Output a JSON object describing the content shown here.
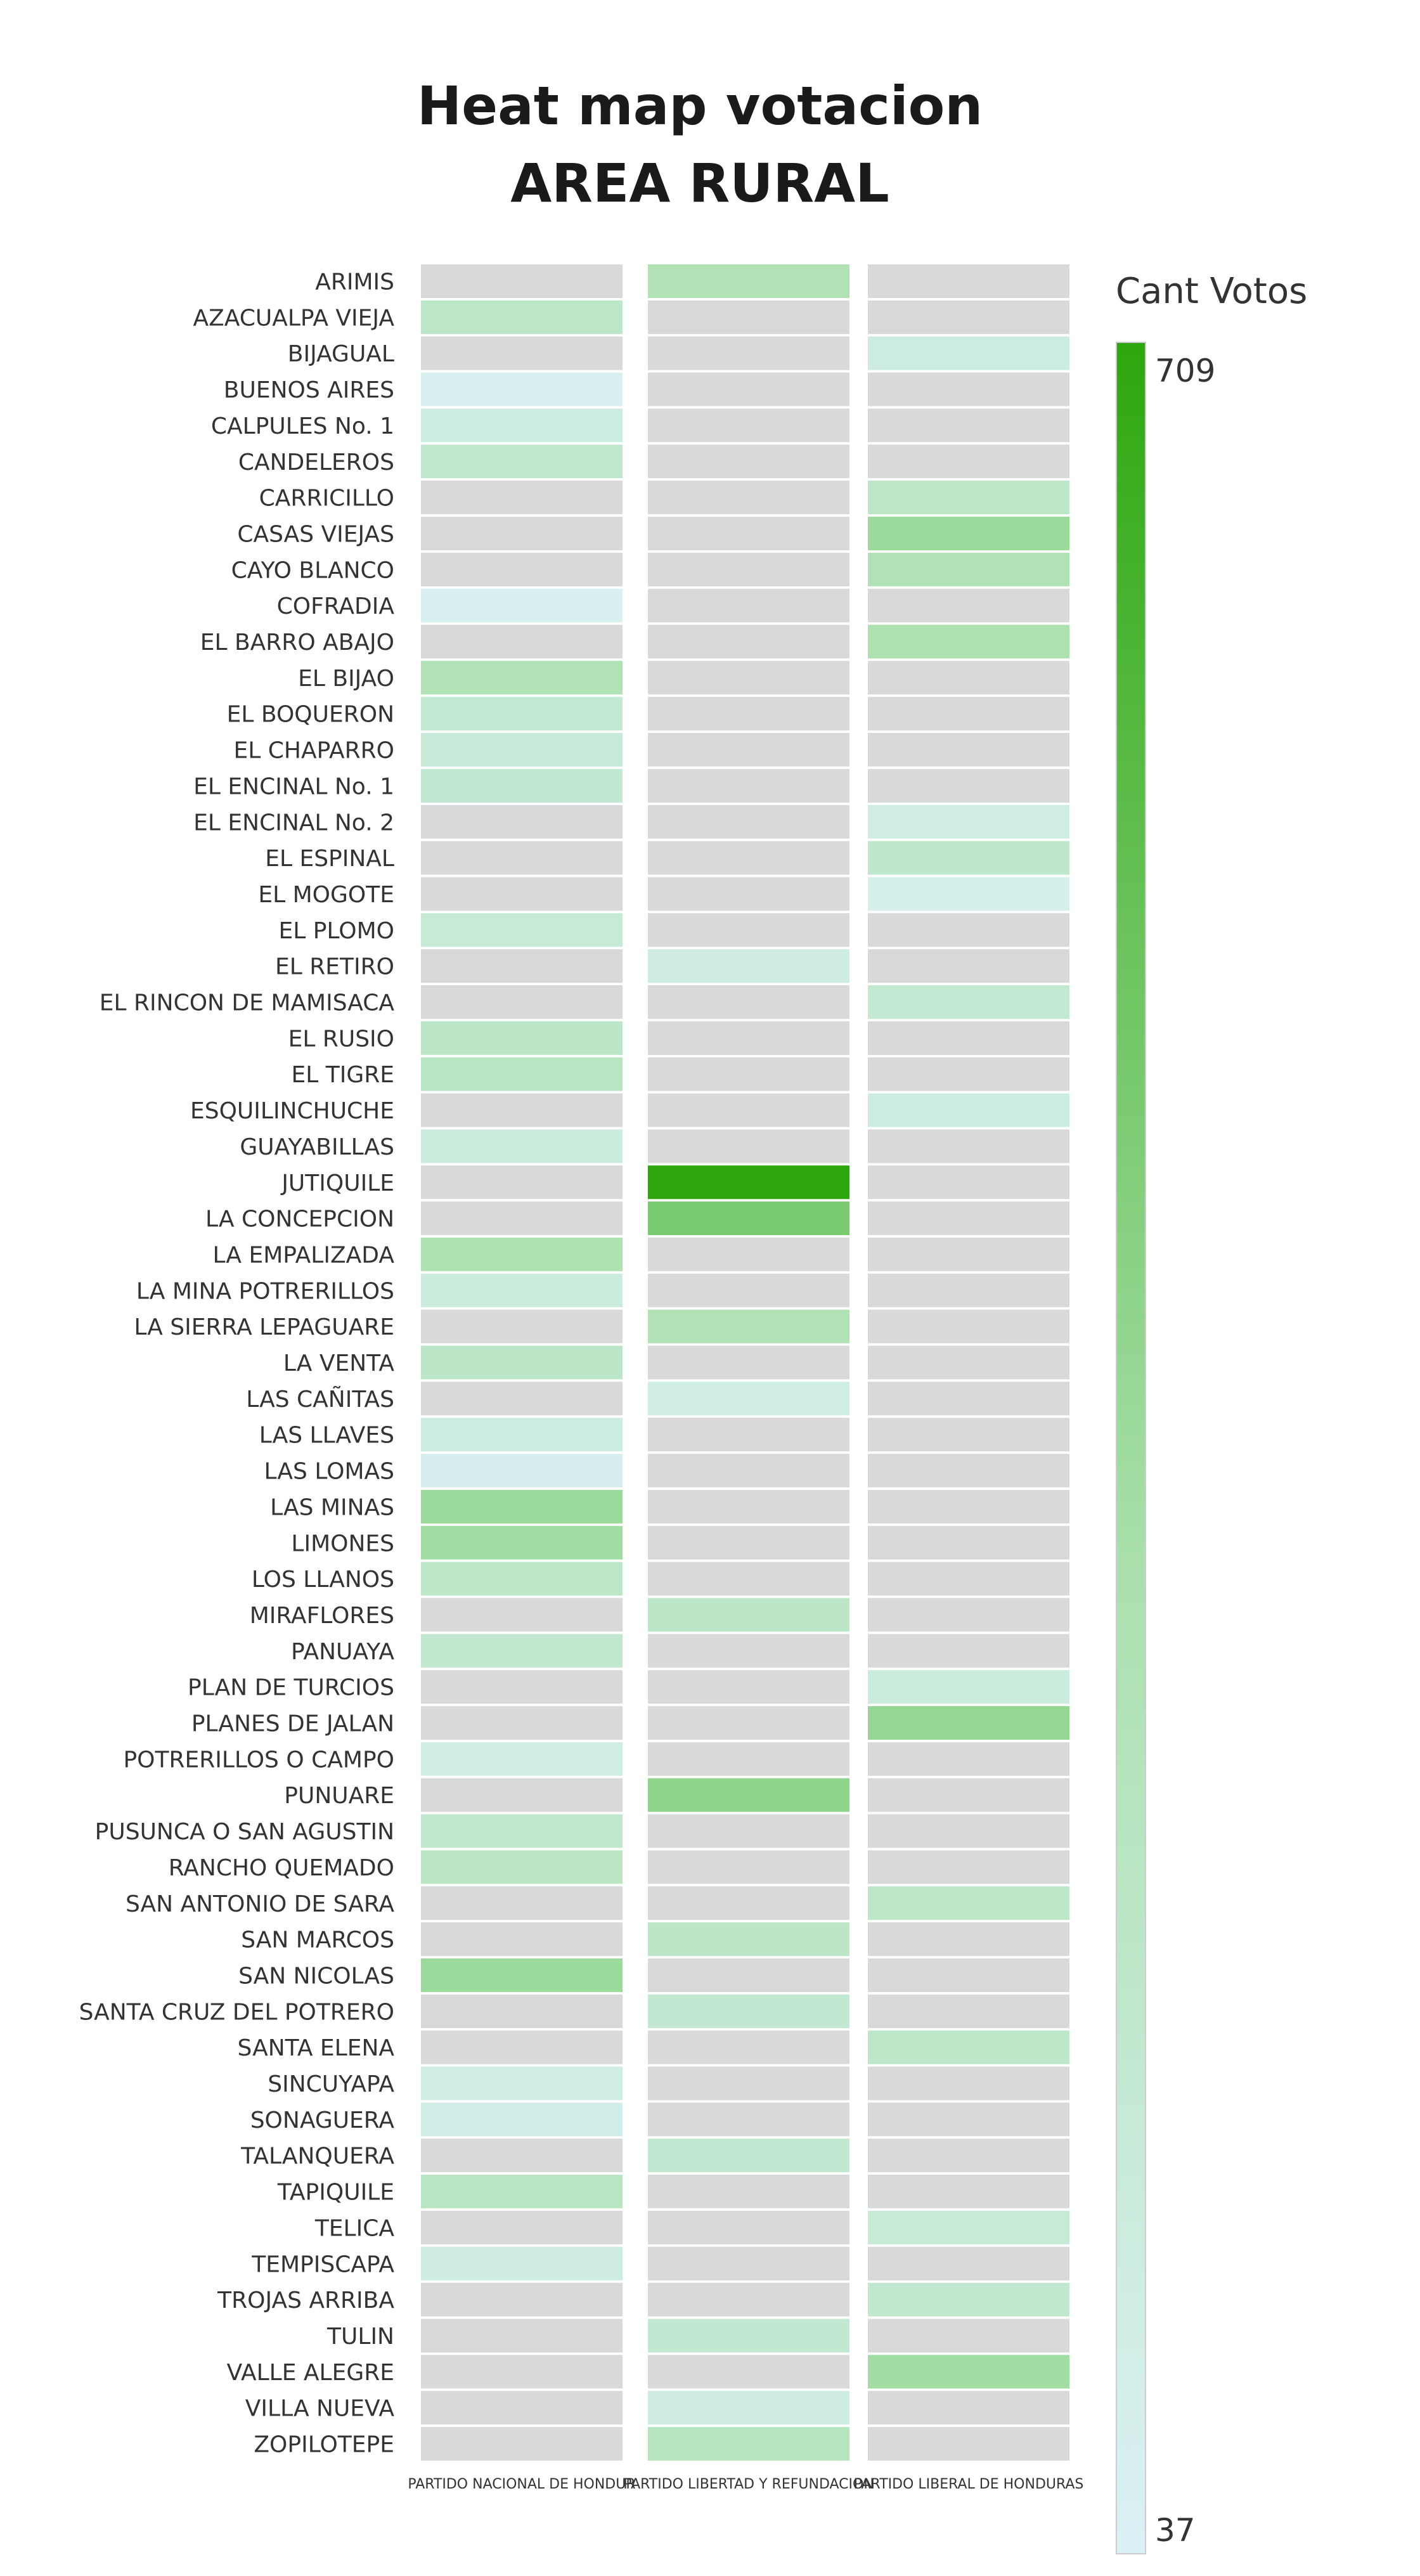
{
  "chart_data": {
    "type": "heatmap",
    "title": "Heat map votacion",
    "subtitle": "AREA RURAL",
    "columns": [
      "PARTIDO NACIONAL DE HONDUR",
      "PARTIDO LIBERTAD Y REFUNDACION",
      "PARTIDO LIBERAL DE HONDURAS"
    ],
    "rows": [
      "ARIMIS",
      "AZACUALPA VIEJA",
      "BIJAGUAL",
      "BUENOS AIRES",
      "CALPULES No. 1",
      "CANDELEROS",
      "CARRICILLO",
      "CASAS VIEJAS",
      "CAYO BLANCO",
      "COFRADIA",
      "EL BARRO ABAJO",
      "EL BIJAO",
      "EL BOQUERON",
      "EL CHAPARRO",
      "EL ENCINAL No. 1",
      "EL ENCINAL No. 2",
      "EL ESPINAL",
      "EL MOGOTE",
      "EL PLOMO",
      "EL RETIRO",
      "EL RINCON DE MAMISACA",
      "EL RUSIO",
      "EL TIGRE",
      "ESQUILINCHUCHE",
      "GUAYABILLAS",
      "JUTIQUILE",
      "LA CONCEPCION",
      "LA EMPALIZADA",
      "LA MINA POTRERILLOS",
      "LA SIERRA LEPAGUARE",
      "LA VENTA",
      "LAS CAÑITAS",
      "LAS LLAVES",
      "LAS LOMAS",
      "LAS MINAS",
      "LIMONES",
      "LOS LLANOS",
      "MIRAFLORES",
      "PANUAYA",
      "PLAN DE TURCIOS",
      "PLANES DE JALAN",
      "POTRERILLOS O CAMPO",
      "PUNUARE",
      "PUSUNCA O SAN AGUSTIN",
      "RANCHO QUEMADO",
      "SAN ANTONIO DE SARA",
      "SAN MARCOS",
      "SAN NICOLAS",
      "SANTA CRUZ DEL POTRERO",
      "SANTA ELENA",
      "SINCUYAPA",
      "SONAGUERA",
      "TALANQUERA",
      "TAPIQUILE",
      "TELICA",
      "TEMPISCAPA",
      "TROJAS ARRIBA",
      "TULIN",
      "VALLE ALEGRE",
      "VILLA NUEVA",
      "ZOPILOTEPE"
    ],
    "values": [
      [
        null,
        300,
        null
      ],
      [
        220,
        null,
        null
      ],
      [
        null,
        null,
        130
      ],
      [
        60,
        null,
        null
      ],
      [
        130,
        null,
        null
      ],
      [
        200,
        null,
        null
      ],
      [
        null,
        null,
        220
      ],
      [
        null,
        null,
        380
      ],
      [
        null,
        null,
        300
      ],
      [
        60,
        null,
        null
      ],
      [
        null,
        null,
        320
      ],
      [
        300,
        null,
        null
      ],
      [
        180,
        null,
        null
      ],
      [
        160,
        null,
        null
      ],
      [
        190,
        null,
        null
      ],
      [
        null,
        null,
        110
      ],
      [
        null,
        null,
        210
      ],
      [
        null,
        null,
        80
      ],
      [
        170,
        null,
        null
      ],
      [
        null,
        120,
        null
      ],
      [
        null,
        null,
        180
      ],
      [
        230,
        null,
        null
      ],
      [
        250,
        null,
        null
      ],
      [
        null,
        null,
        130
      ],
      [
        140,
        null,
        null
      ],
      [
        null,
        709,
        null
      ],
      [
        null,
        480,
        null
      ],
      [
        310,
        null,
        null
      ],
      [
        140,
        null,
        null
      ],
      [
        null,
        300,
        null
      ],
      [
        230,
        null,
        null
      ],
      [
        null,
        110,
        null
      ],
      [
        130,
        null,
        null
      ],
      [
        70,
        null,
        null
      ],
      [
        380,
        null,
        null
      ],
      [
        360,
        null,
        null
      ],
      [
        220,
        null,
        null
      ],
      [
        null,
        230,
        null
      ],
      [
        200,
        null,
        null
      ],
      [
        null,
        null,
        140
      ],
      [
        null,
        null,
        400
      ],
      [
        110,
        null,
        null
      ],
      [
        null,
        420,
        null
      ],
      [
        200,
        null,
        null
      ],
      [
        240,
        null,
        null
      ],
      [
        null,
        null,
        220
      ],
      [
        null,
        230,
        null
      ],
      [
        380,
        null,
        null
      ],
      [
        null,
        190,
        null
      ],
      [
        null,
        null,
        220
      ],
      [
        110,
        null,
        null
      ],
      [
        100,
        null,
        null
      ],
      [
        null,
        190,
        null
      ],
      [
        250,
        null,
        null
      ],
      [
        null,
        null,
        170
      ],
      [
        120,
        null,
        null
      ],
      [
        null,
        null,
        200
      ],
      [
        null,
        190,
        null
      ],
      [
        null,
        null,
        360
      ],
      [
        null,
        120,
        null
      ],
      [
        null,
        260,
        null
      ]
    ],
    "legend": {
      "title": "Cant Votos",
      "max": 709,
      "min": 37,
      "max_label": "709",
      "min_label": "37",
      "placement": "right"
    },
    "colors": {
      "missing": "#d9d9d9",
      "low": "#dcf1f6",
      "mid": "#a9e0ac",
      "high": "#2ea70e"
    },
    "grid": false
  }
}
